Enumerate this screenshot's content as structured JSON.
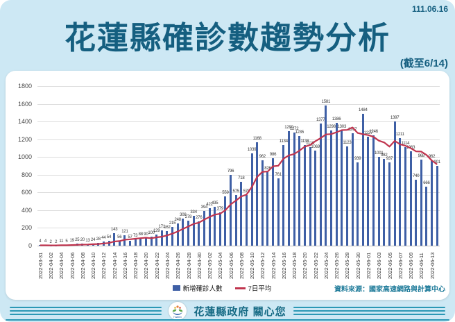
{
  "header": {
    "date": "111.06.16",
    "title": "花蓮縣確診數趨勢分析",
    "subtitle": "(截至6/14)"
  },
  "chart_data": {
    "type": "bar",
    "title": "花蓮縣確診數趨勢分析",
    "xlabel": "",
    "ylabel": "",
    "ylim": [
      0,
      1800
    ],
    "yticks": [
      0,
      200,
      400,
      600,
      800,
      1000,
      1200,
      1400,
      1600,
      1800
    ],
    "grid": "horizontal",
    "xtick_every_n": 2,
    "legend_position": "bottom-center",
    "x": [
      "2022-03-31",
      "2022-04-01",
      "2022-04-02",
      "2022-04-03",
      "2022-04-04",
      "2022-04-05",
      "2022-04-06",
      "2022-04-07",
      "2022-04-08",
      "2022-04-09",
      "2022-04-10",
      "2022-04-11",
      "2022-04-12",
      "2022-04-13",
      "2022-04-14",
      "2022-04-15",
      "2022-04-16",
      "2022-04-17",
      "2022-04-18",
      "2022-04-19",
      "2022-04-20",
      "2022-04-21",
      "2022-04-22",
      "2022-04-23",
      "2022-04-24",
      "2022-04-25",
      "2022-04-26",
      "2022-04-27",
      "2022-04-28",
      "2022-04-29",
      "2022-04-30",
      "2022-05-01",
      "2022-05-02",
      "2022-05-03",
      "2022-05-04",
      "2022-05-05",
      "2022-05-06",
      "2022-05-07",
      "2022-05-08",
      "2022-05-09",
      "2022-05-10",
      "2022-05-11",
      "2022-05-12",
      "2022-05-13",
      "2022-05-14",
      "2022-05-15",
      "2022-05-16",
      "2022-05-17",
      "2022-05-18",
      "2022-05-19",
      "2022-05-20",
      "2022-05-21",
      "2022-05-22",
      "2022-05-23",
      "2022-05-24",
      "2022-05-25",
      "2022-05-26",
      "2022-05-27",
      "2022-05-28",
      "2022-05-29",
      "2022-05-30",
      "2022-05-31",
      "2022-06-01",
      "2022-06-02",
      "2022-06-03",
      "2022-06-04",
      "2022-06-05",
      "2022-06-06",
      "2022-06-07",
      "2022-06-08",
      "2022-06-09",
      "2022-06-10",
      "2022-06-11",
      "2022-06-12",
      "2022-06-13",
      "2022-06-14"
    ],
    "series": [
      {
        "name": "新增確診人數",
        "type": "bar",
        "values": [
          4,
          4,
          2,
          2,
          11,
          5,
          19,
          25,
          20,
          13,
          24,
          28,
          44,
          54,
          143,
          56,
          121,
          57,
          73,
          88,
          90,
          100,
          129,
          171,
          162,
          215,
          248,
          308,
          278,
          334,
          276,
          394,
          422,
          435,
          379,
          559,
          796,
          575,
          718,
          570,
          1039,
          1168,
          962,
          826,
          986,
          761,
          1134,
          1290,
          1272,
          1235,
          1138,
          1110,
          1069,
          1377,
          1581,
          1298,
          1386,
          1303,
          1123,
          1267,
          939,
          1484,
          1227,
          1246,
          1001,
          982,
          937,
          1397,
          1211,
          1114,
          1063,
          740,
          968,
          666,
          962,
          901
        ]
      },
      {
        "name": "7日平均",
        "type": "line",
        "derivation": "trailing 7-day mean of 新增確診人數 (computed, not labeled in image)"
      }
    ],
    "source_note": "資料來源：國家高速網路與計算中心"
  },
  "footer": {
    "text": "花蓮縣政府 關心您",
    "logo_text": "Hualien"
  },
  "colors": {
    "background": "#cde8f4",
    "panel": "#ffffff",
    "title": "#155f80",
    "bar": "#3e5fa5",
    "line": "#c0344e",
    "source_note": "#1d7a99",
    "footer_line": "#2b98b5",
    "footer_text": "#176b85"
  }
}
